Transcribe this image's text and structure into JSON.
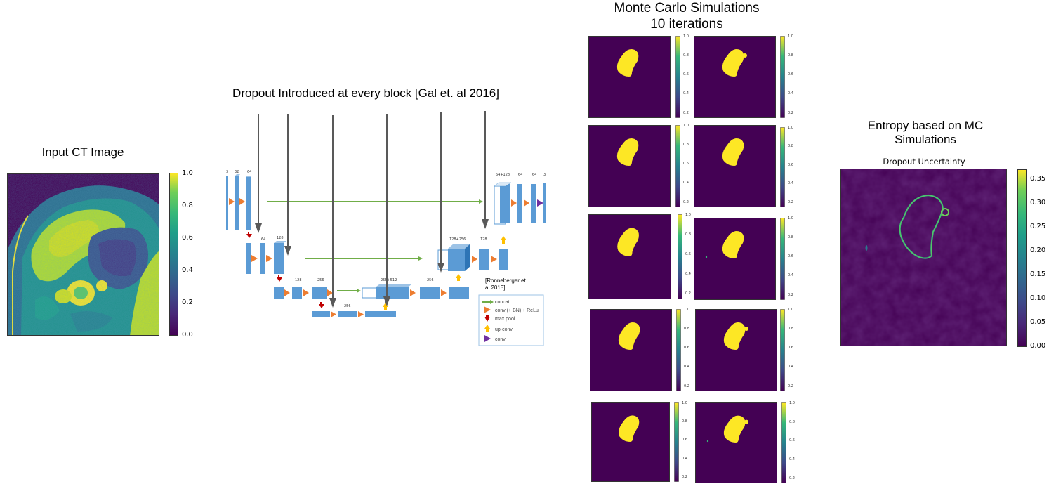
{
  "panels": {
    "input": {
      "title": "Input CT Image",
      "colorbar_ticks": [
        "1.0",
        "0.8",
        "0.6",
        "0.4",
        "0.2",
        "0.0"
      ]
    },
    "dropout": {
      "title": "Dropout Introduced at every block [Gal et. al 2016]",
      "top_labels": [
        "3",
        "32",
        "64",
        "64+128",
        "64",
        "64",
        "3"
      ],
      "level2_labels": [
        "64",
        "128",
        "128+256",
        "128"
      ],
      "level3_labels": [
        "128",
        "256",
        "256+512",
        "256"
      ],
      "level4_labels": [
        "256"
      ],
      "citation_line1": "[Ronneberger et.",
      "citation_line2": "al 2015]",
      "legend": [
        "concat",
        "conv (+ BN) + ReLu",
        "max pool",
        "up-conv",
        "conv"
      ]
    },
    "monte_carlo": {
      "title_line1": "Monte Carlo Simulations",
      "title_line2": "10 iterations",
      "mini_ticks": [
        "1.0",
        "0.8",
        "0.6",
        "0.4",
        "0.2"
      ]
    },
    "entropy": {
      "title_line1": "Entropy based on MC",
      "title_line2": "Simulations",
      "subtitle": "Dropout Uncertainty",
      "colorbar_ticks": [
        "0.35",
        "0.30",
        "0.25",
        "0.20",
        "0.15",
        "0.10",
        "0.05",
        "0.00"
      ]
    }
  },
  "colors": {
    "viridis_dark": "#440154",
    "viridis_yellow": "#fde725",
    "block_blue": "#5b9bd5",
    "conv_orange": "#ed7d31",
    "concat_green": "#70ad47",
    "pool_red": "#c00000",
    "upconv_gold": "#ffc000",
    "final_purple": "#7030a0"
  }
}
